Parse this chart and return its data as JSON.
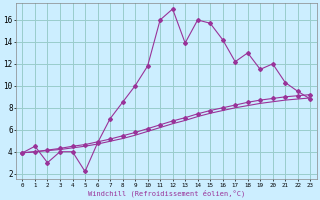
{
  "xlabel": "Windchill (Refroidissement éolien,°C)",
  "background_color": "#cceeff",
  "grid_color": "#99cccc",
  "line_color": "#993399",
  "x_ticks": [
    0,
    1,
    2,
    3,
    4,
    5,
    6,
    7,
    8,
    9,
    10,
    11,
    12,
    13,
    14,
    15,
    16,
    17,
    18,
    19,
    20,
    21,
    22,
    23
  ],
  "y_ticks": [
    2,
    4,
    6,
    8,
    10,
    12,
    14,
    16
  ],
  "ylim": [
    1.5,
    17.5
  ],
  "xlim": [
    -0.5,
    23.5
  ],
  "series1_x": [
    0,
    1,
    2,
    3,
    4,
    5,
    6,
    7,
    8,
    9,
    10,
    11,
    12,
    13,
    14,
    15,
    16,
    17,
    18,
    19,
    20,
    21,
    22,
    23
  ],
  "series1_y": [
    3.9,
    4.5,
    3.0,
    4.0,
    4.0,
    2.2,
    4.8,
    7.0,
    8.5,
    10.0,
    11.8,
    16.0,
    17.0,
    13.9,
    16.0,
    15.7,
    14.2,
    12.2,
    13.0,
    11.5,
    12.0,
    10.3,
    9.5,
    8.8
  ],
  "series2_x": [
    0,
    1,
    2,
    3,
    4,
    5,
    6,
    7,
    8,
    9,
    10,
    11,
    12,
    13,
    14,
    15,
    16,
    17,
    18,
    19,
    20,
    21,
    22,
    23
  ],
  "series2_y": [
    3.9,
    4.0,
    4.15,
    4.3,
    4.5,
    4.65,
    4.9,
    5.15,
    5.45,
    5.75,
    6.1,
    6.45,
    6.8,
    7.1,
    7.45,
    7.75,
    8.0,
    8.25,
    8.5,
    8.7,
    8.85,
    9.0,
    9.1,
    9.2
  ],
  "series3_x": [
    0,
    1,
    2,
    3,
    4,
    5,
    6,
    7,
    8,
    9,
    10,
    11,
    12,
    13,
    14,
    15,
    16,
    17,
    18,
    19,
    20,
    21,
    22,
    23
  ],
  "series3_y": [
    3.9,
    4.0,
    4.1,
    4.2,
    4.35,
    4.5,
    4.7,
    4.95,
    5.2,
    5.5,
    5.85,
    6.2,
    6.55,
    6.85,
    7.2,
    7.5,
    7.75,
    8.0,
    8.2,
    8.4,
    8.55,
    8.7,
    8.8,
    8.9
  ]
}
